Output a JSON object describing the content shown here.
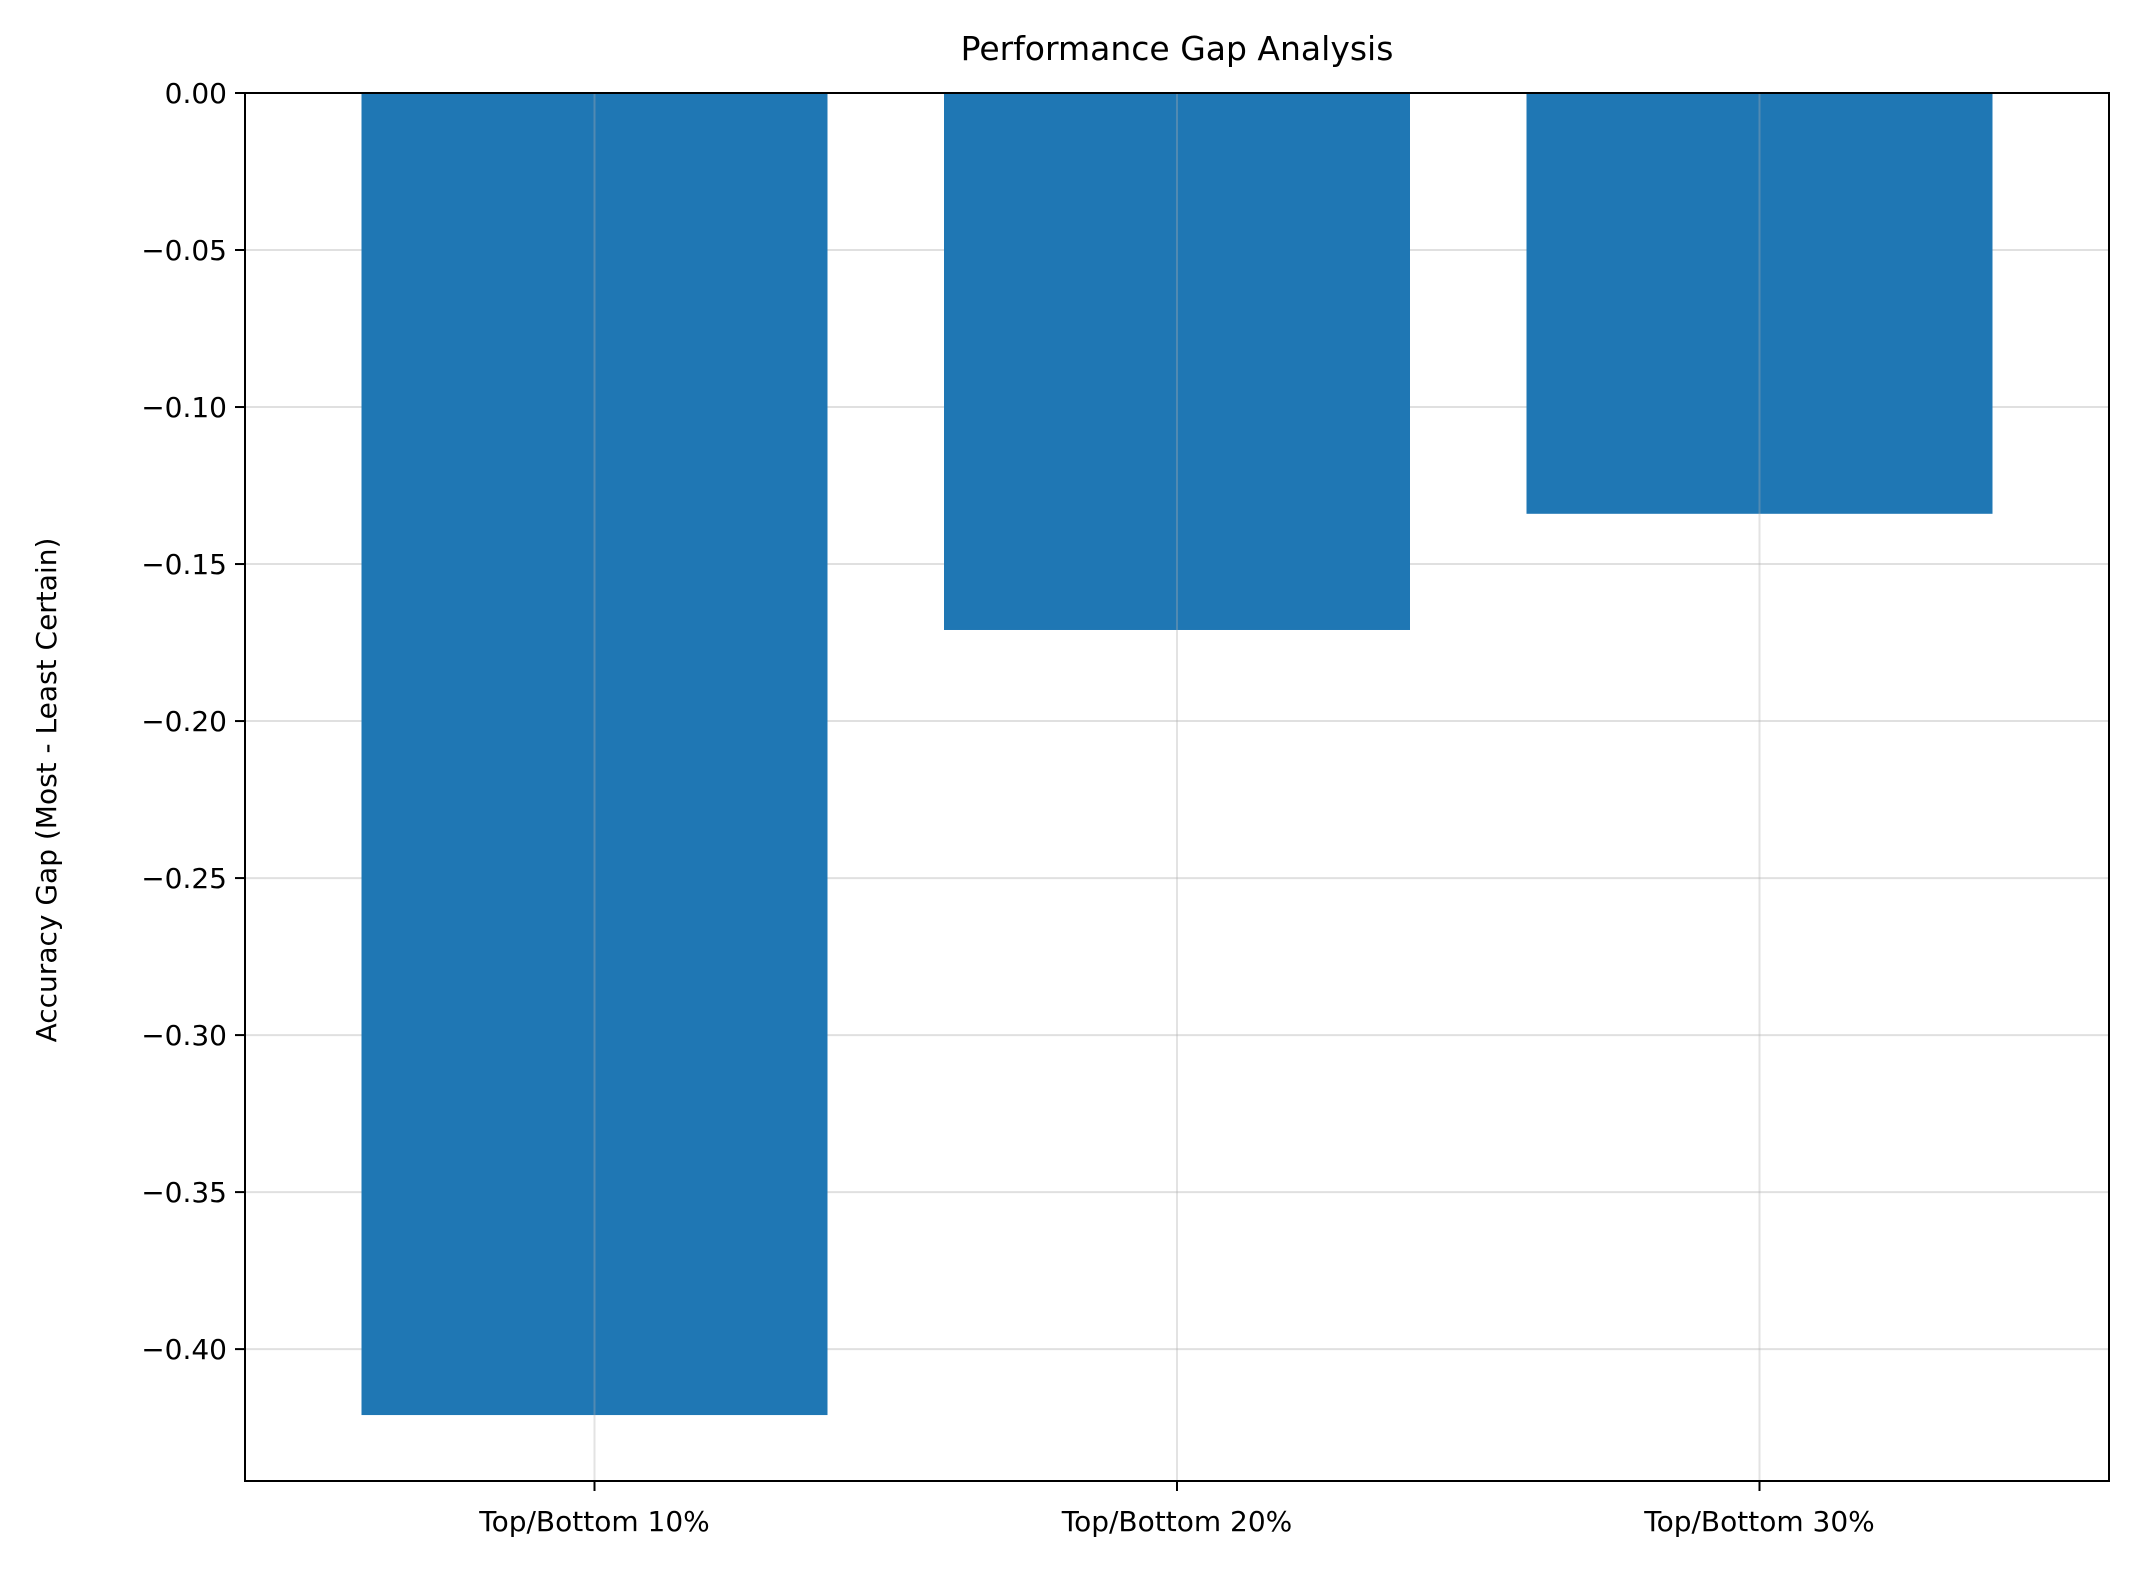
{
  "chart_data": {
    "type": "bar",
    "title": "Performance Gap Analysis",
    "xlabel": "",
    "ylabel": "Accuracy Gap (Most - Least Certain)",
    "categories": [
      "Top/Bottom 10%",
      "Top/Bottom 20%",
      "Top/Bottom 30%"
    ],
    "values": [
      -0.421,
      -0.171,
      -0.134
    ],
    "ylim": [
      -0.442,
      0.0
    ],
    "yticks": [
      0.0,
      -0.05,
      -0.1,
      -0.15,
      -0.2,
      -0.25,
      -0.3,
      -0.35,
      -0.4
    ],
    "ytick_labels": [
      "0.00",
      "−0.05",
      "−0.10",
      "−0.15",
      "−0.20",
      "−0.25",
      "−0.30",
      "−0.35",
      "−0.40"
    ],
    "grid": true,
    "bar_color": "#1f77b4",
    "grid_color": "#e0e0e0"
  }
}
